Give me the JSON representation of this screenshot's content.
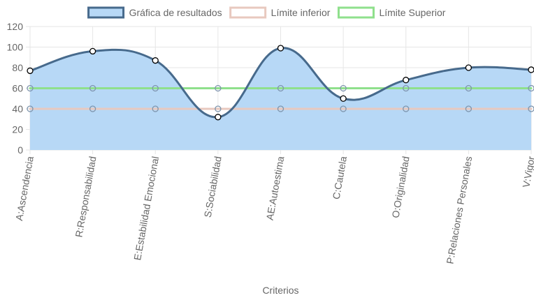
{
  "chart_data": {
    "type": "line",
    "xlabel": "Criterios",
    "ylabel": "",
    "ylim": [
      0,
      120
    ],
    "yticks": [
      "0",
      "20",
      "40",
      "60",
      "80",
      "100",
      "120"
    ],
    "grid": true,
    "legend_position": "top",
    "categories": [
      "A:Ascendencia",
      "R:Responsabilidad",
      "E:Estabilidad Emocional",
      "S:Sociabilidad",
      "AE:Autoestima",
      "C:Cautela",
      "O:Originalidad",
      "P:Relaciones Personales",
      "V:Vigor"
    ],
    "series": [
      {
        "name": "Gráfica de resultados",
        "values": [
          77,
          96,
          87,
          32,
          99,
          50,
          68,
          80,
          78
        ],
        "line_color": "#476a8c",
        "fill_color": "#b7d8f6",
        "filled": true
      },
      {
        "name": "Límite inferior",
        "values": [
          40,
          40,
          40,
          40,
          40,
          40,
          40,
          40,
          40
        ],
        "line_color": "#e8c9bf",
        "legend_fill": "#ffffff",
        "filled": false
      },
      {
        "name": "Límite Superior",
        "values": [
          60,
          60,
          60,
          60,
          60,
          60,
          60,
          60,
          60
        ],
        "line_color": "#8fe08c",
        "legend_fill": "#ffffff",
        "filled": false
      }
    ]
  }
}
